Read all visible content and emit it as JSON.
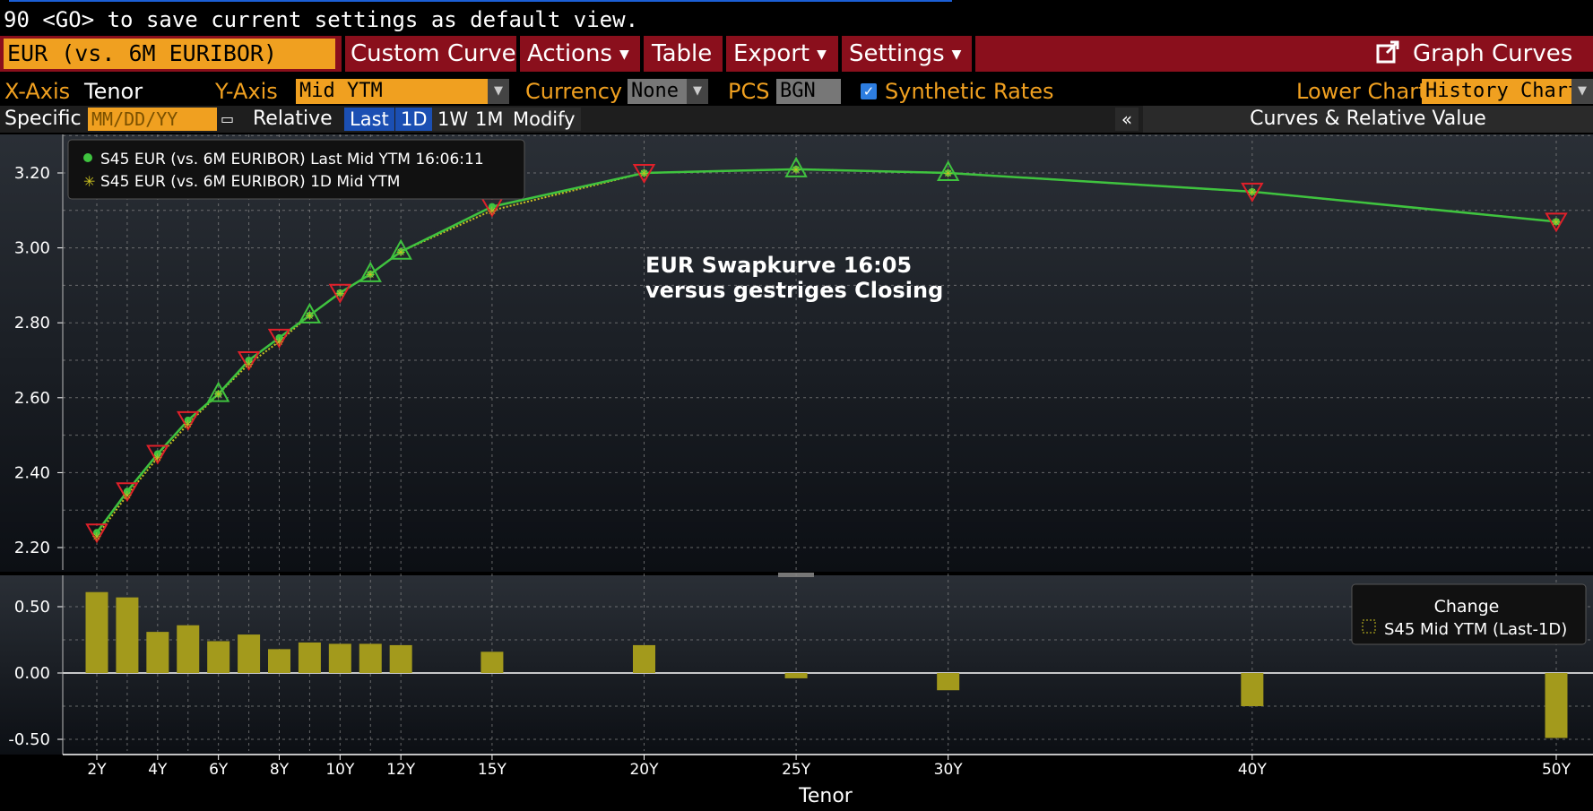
{
  "hint": "90 <GO> to save current settings as default view.",
  "menubar": {
    "curve": "EUR (vs. 6M EURIBOR)",
    "custom_curve": "Custom Curve",
    "actions": "Actions",
    "table": "Table",
    "export": "Export",
    "settings": "Settings",
    "graph_curves": "Graph Curves"
  },
  "axisbar": {
    "xaxis_label": "X-Axis",
    "xaxis_value": "Tenor",
    "yaxis_label": "Y-Axis",
    "yaxis_value": "Mid YTM",
    "currency_label": "Currency",
    "currency_value": "None",
    "pcs_label": "PCS",
    "pcs_value": "BGN",
    "synthetic_label": "Synthetic Rates",
    "synthetic_checked": true,
    "lower_chart_label": "Lower Chart",
    "lower_chart_value": "History Chart"
  },
  "datebar": {
    "specific_label": "Specific",
    "date_placeholder": "MM/DD/YY",
    "relative_label": "Relative",
    "buttons": [
      "Last",
      "1D",
      "1W",
      "1M",
      "Modify"
    ],
    "active_buttons": [
      "Last",
      "1D"
    ],
    "collapse": "«",
    "panel_title": "Curves & Relative Value"
  },
  "colors": {
    "orange": "#f0a020",
    "menu_red": "#8a0f1c",
    "green": "#3fc33f",
    "red_marker": "#e0202a",
    "bar": "#a39a1c"
  },
  "chart_data": [
    {
      "type": "line",
      "annotation": [
        "EUR Swapkurve 16:05",
        "versus gestriges Closing"
      ],
      "legend": [
        "S45 EUR (vs. 6M EURIBOR) Last Mid YTM 16:06:11",
        "S45 EUR (vs. 6M EURIBOR) 1D Mid YTM"
      ],
      "legend_placement": "top-left",
      "ylim": [
        2.15,
        3.3
      ],
      "y_ticks": [
        2.2,
        2.4,
        2.6,
        2.8,
        3.0,
        3.2
      ],
      "x_ticks": [
        "2Y",
        "4Y",
        "6Y",
        "8Y",
        "10Y",
        "12Y",
        "15Y",
        "20Y",
        "25Y",
        "30Y",
        "40Y",
        "50Y"
      ],
      "x_tenors": [
        2,
        3,
        4,
        5,
        6,
        7,
        8,
        9,
        10,
        11,
        12,
        15,
        20,
        25,
        30,
        40,
        50
      ],
      "series": [
        {
          "name": "S45 EUR (vs. 6M EURIBOR) Last Mid YTM 16:06:11",
          "values": [
            2.24,
            2.35,
            2.45,
            2.54,
            2.61,
            2.7,
            2.76,
            2.82,
            2.88,
            2.93,
            2.99,
            3.11,
            3.2,
            3.21,
            3.2,
            3.15,
            3.07
          ]
        },
        {
          "name": "S45 EUR (vs. 6M EURIBOR) 1D Mid YTM",
          "values": [
            2.23,
            2.34,
            2.44,
            2.53,
            2.61,
            2.69,
            2.75,
            2.82,
            2.88,
            2.93,
            2.99,
            3.1,
            3.2,
            3.21,
            3.2,
            3.15,
            3.07
          ]
        }
      ],
      "marker_up": [
        6,
        8,
        10,
        11,
        13,
        14,
        15
      ],
      "marker_down": [
        3,
        4,
        5,
        7,
        12,
        16,
        17,
        18
      ],
      "grid": true
    },
    {
      "type": "bar",
      "title": "Change",
      "legend": [
        "S45 Mid YTM (Last-1D)"
      ],
      "legend_placement": "right",
      "xlabel": "Tenor",
      "ylim": [
        -0.55,
        0.7
      ],
      "y_ticks": [
        -0.5,
        0.0,
        0.5
      ],
      "x_tenors": [
        2,
        3,
        4,
        5,
        6,
        7,
        8,
        9,
        10,
        11,
        12,
        15,
        20,
        25,
        30,
        40,
        50
      ],
      "values": [
        0.61,
        0.57,
        0.31,
        0.36,
        0.24,
        0.29,
        0.18,
        0.23,
        0.22,
        0.22,
        0.21,
        0.16,
        0.21,
        -0.04,
        -0.13,
        -0.25,
        -0.49
      ],
      "grid": true
    }
  ]
}
